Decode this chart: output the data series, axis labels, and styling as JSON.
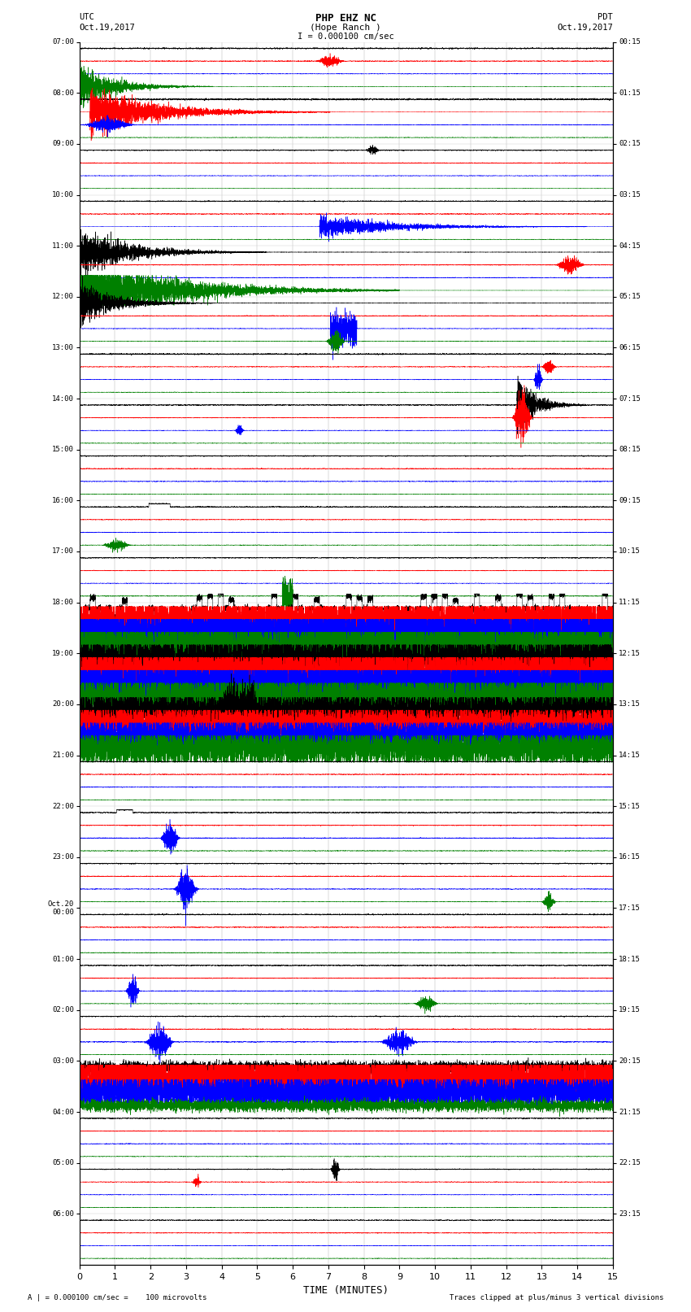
{
  "title_line1": "PHP EHZ NC",
  "title_line2": "(Hope Ranch )",
  "title_scale": "I = 0.000100 cm/sec",
  "left_header_line1": "UTC",
  "left_header_line2": "Oct.19,2017",
  "right_header_line1": "PDT",
  "right_header_line2": "Oct.19,2017",
  "xlabel": "TIME (MINUTES)",
  "footer_left": "A | = 0.000100 cm/sec =    100 microvolts",
  "footer_right": "Traces clipped at plus/minus 3 vertical divisions",
  "utc_labels": [
    "07:00",
    "08:00",
    "09:00",
    "10:00",
    "11:00",
    "12:00",
    "13:00",
    "14:00",
    "15:00",
    "16:00",
    "17:00",
    "18:00",
    "19:00",
    "20:00",
    "21:00",
    "22:00",
    "23:00",
    "Oct.20\n00:00",
    "01:00",
    "02:00",
    "03:00",
    "04:00",
    "05:00",
    "06:00"
  ],
  "pdt_labels": [
    "00:15",
    "01:15",
    "02:15",
    "03:15",
    "04:15",
    "05:15",
    "06:15",
    "07:15",
    "08:15",
    "09:15",
    "10:15",
    "11:15",
    "12:15",
    "13:15",
    "14:15",
    "15:15",
    "16:15",
    "17:15",
    "18:15",
    "19:15",
    "20:15",
    "21:15",
    "22:15",
    "23:15"
  ],
  "colors": [
    "black",
    "red",
    "blue",
    "green"
  ],
  "bg_color": "white",
  "xmin": 0,
  "xmax": 15,
  "xticks": [
    0,
    1,
    2,
    3,
    4,
    5,
    6,
    7,
    8,
    9,
    10,
    11,
    12,
    13,
    14,
    15
  ]
}
